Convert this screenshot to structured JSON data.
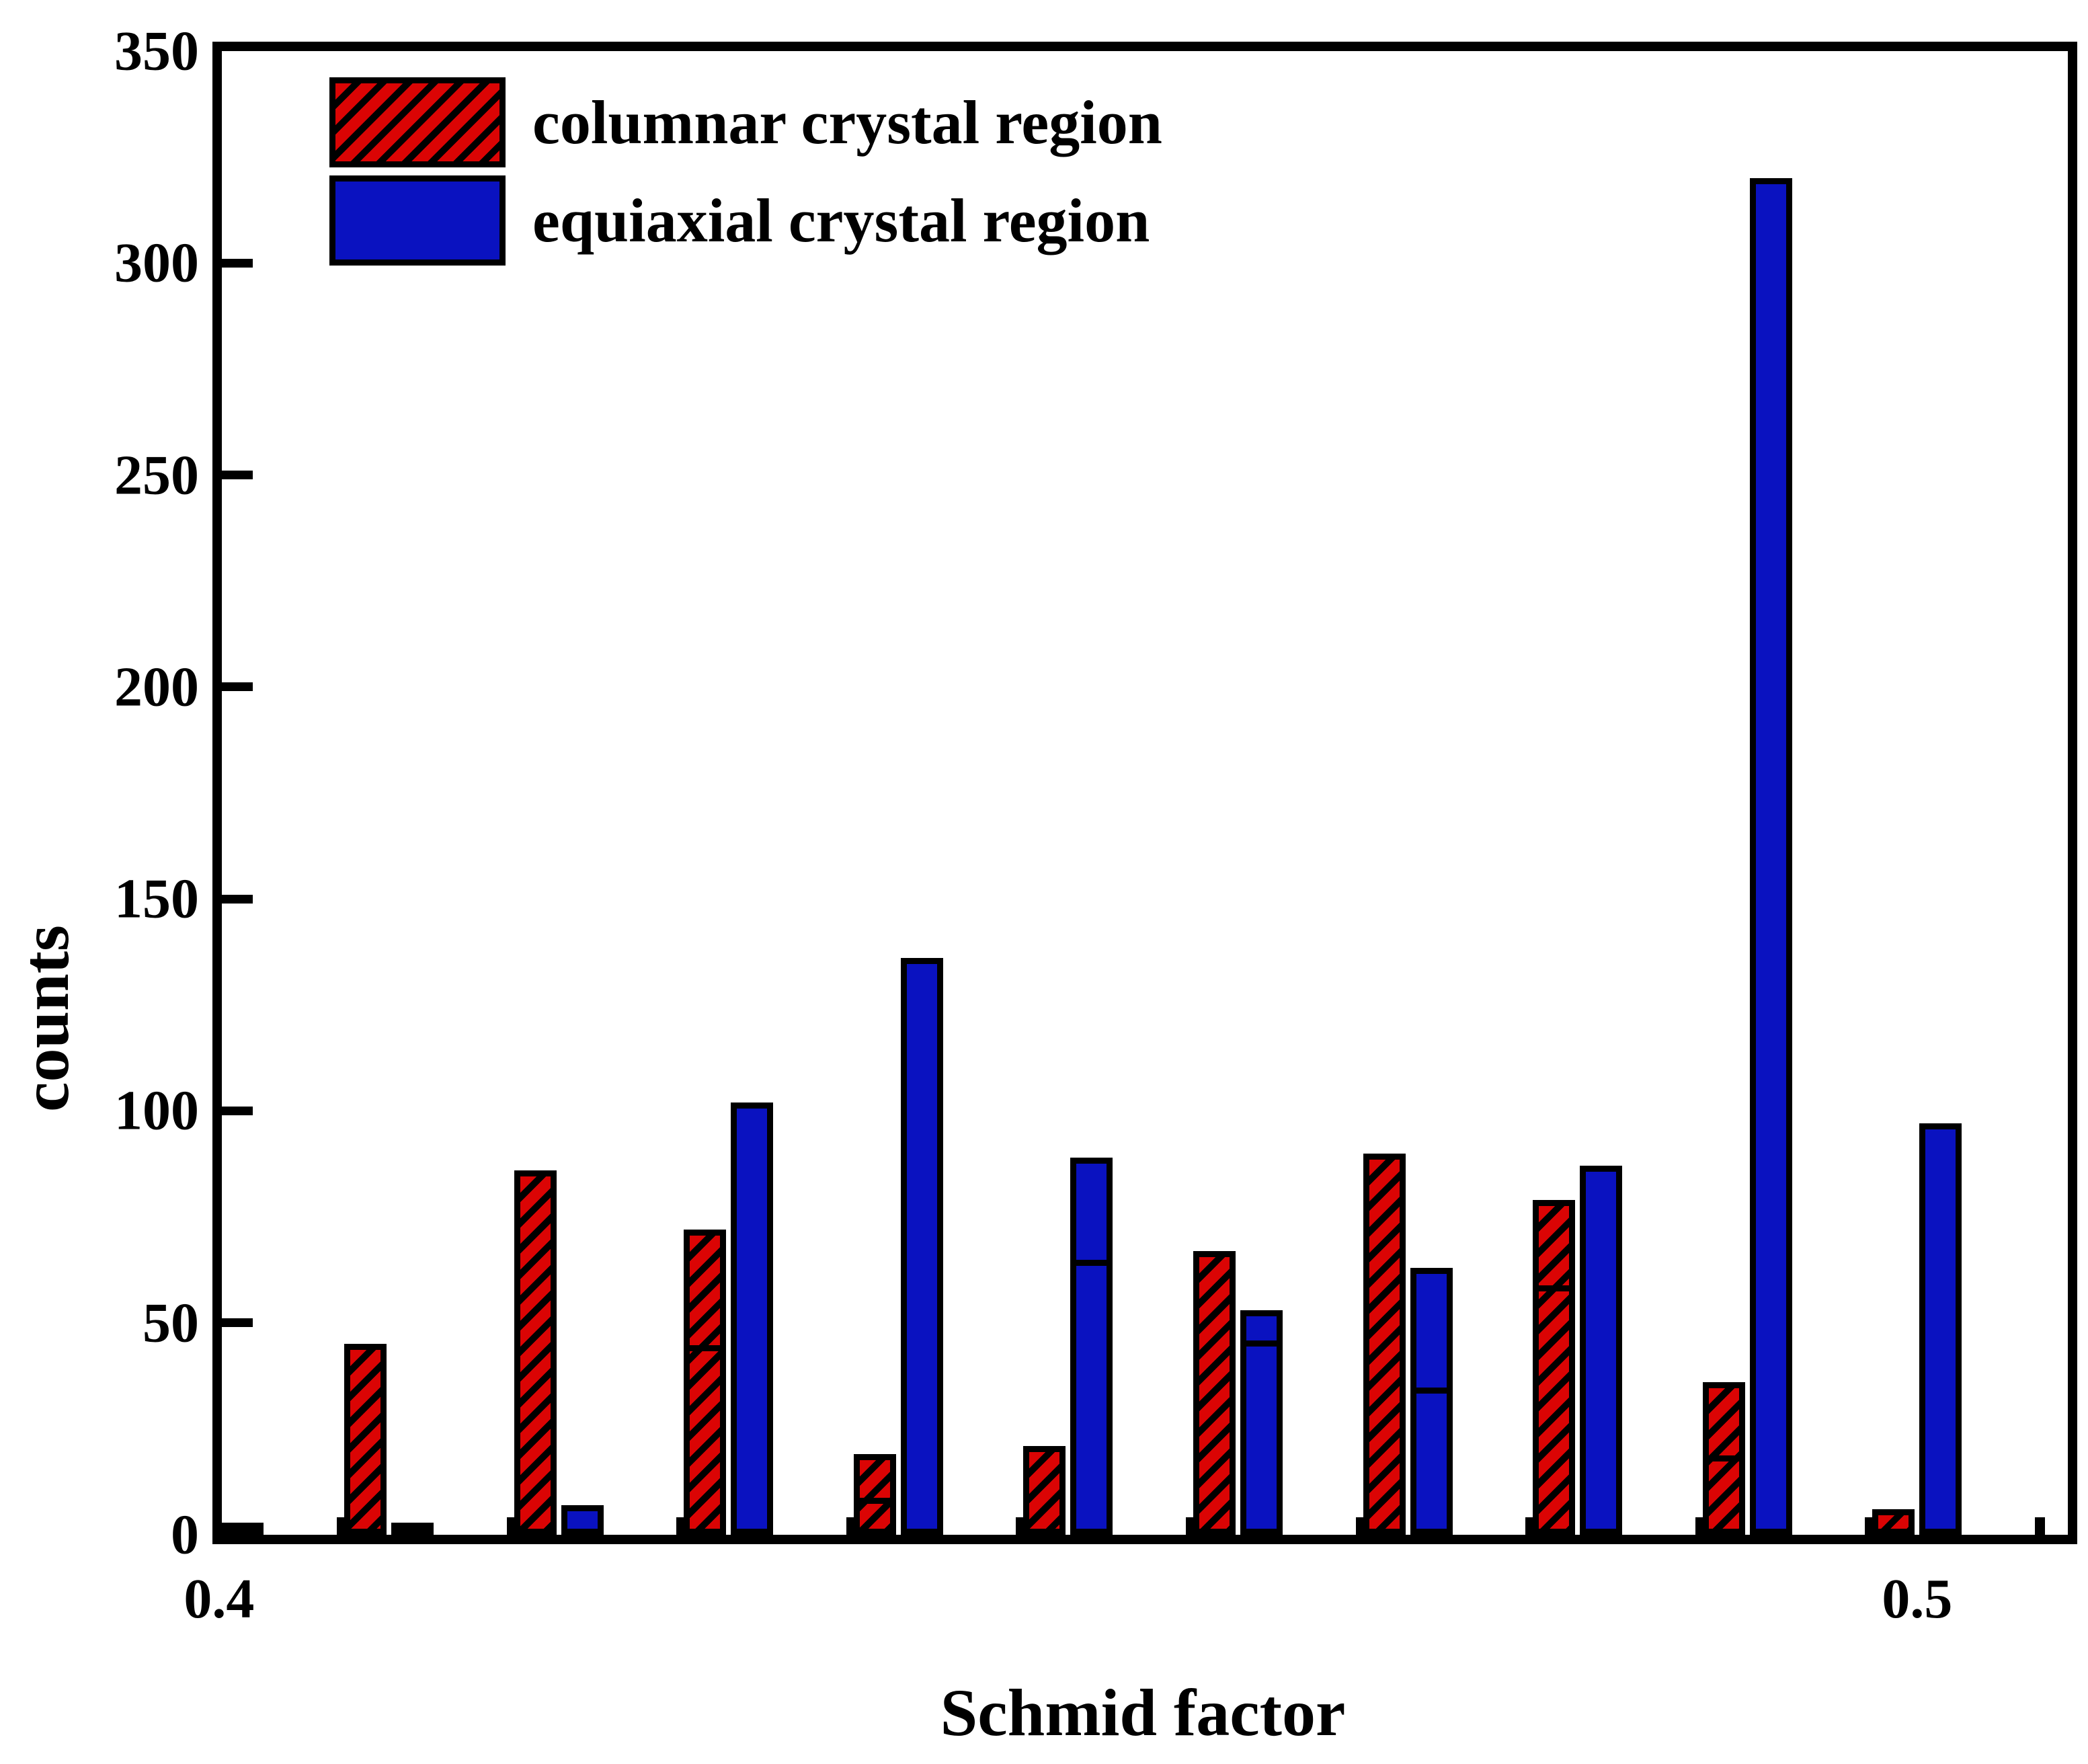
{
  "chart_data": {
    "type": "bar",
    "title": "",
    "xlabel": "Schmid factor",
    "ylabel": "counts",
    "ylim": [
      0,
      350
    ],
    "y_ticks": [
      0,
      50,
      100,
      150,
      200,
      250,
      300,
      350
    ],
    "x_range": [
      0.4,
      0.5
    ],
    "x_tick_labels": [
      {
        "label": "0.4",
        "bin_index": 0
      },
      {
        "label": "0.5",
        "bin_index": 10
      }
    ],
    "bin_centers": [
      0.4,
      0.41,
      0.42,
      0.43,
      0.44,
      0.45,
      0.46,
      0.47,
      0.48,
      0.49,
      0.5
    ],
    "grid": false,
    "legend_position": "top-left",
    "series": [
      {
        "name": "columnar crystal region",
        "color": "#DB0404",
        "hatch": "/",
        "border_color": "#000000",
        "values": [
          0,
          45,
          86,
          72,
          19,
          21,
          67,
          90,
          79,
          36,
          6
        ],
        "segment_dividers": [
          null,
          null,
          null,
          44,
          8,
          null,
          null,
          null,
          58,
          18,
          null
        ]
      },
      {
        "name": "equiaxial crystal region",
        "color": "#0A12C0",
        "hatch": null,
        "border_color": "#000000",
        "values": [
          2,
          2,
          7,
          102,
          136,
          89,
          53,
          63,
          87,
          320,
          97
        ],
        "segment_dividers": [
          null,
          null,
          null,
          null,
          null,
          64,
          45,
          34,
          null,
          null,
          null
        ]
      }
    ]
  }
}
